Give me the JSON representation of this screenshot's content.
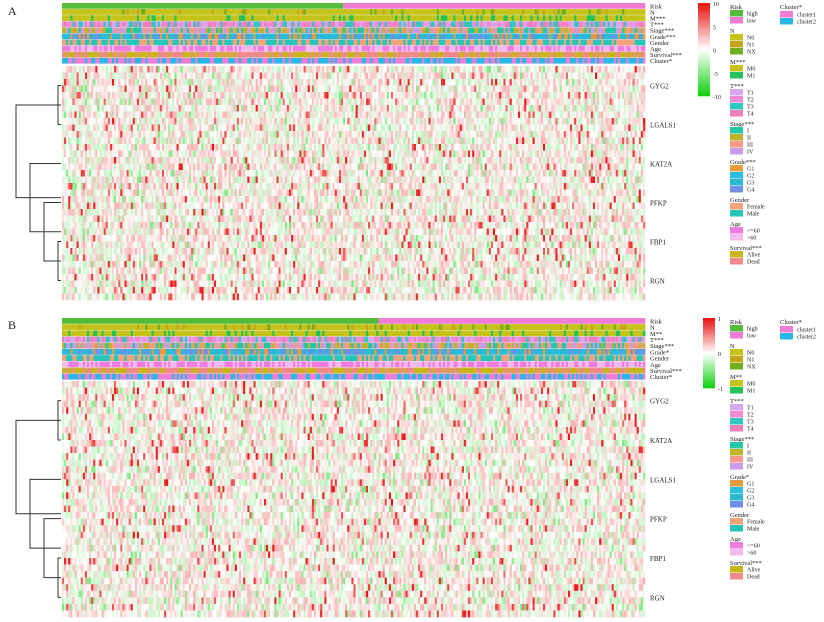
{
  "panels": [
    {
      "label": "A",
      "annotation_rows": [
        {
          "name": "Risk",
          "values": [
            "high",
            "low"
          ],
          "colors": [
            "#55bb3a",
            "#f07cd6"
          ]
        },
        {
          "name": "N",
          "values": [
            "N0",
            "N1",
            "NX"
          ],
          "colors": [
            "#c5c31a",
            "#c5a51a",
            "#6fae1f"
          ]
        },
        {
          "name": "M***",
          "values": [
            "M0",
            "M1"
          ],
          "colors": [
            "#c5c31a",
            "#23c25a"
          ]
        },
        {
          "name": "T***",
          "values": [
            "T1",
            "T2",
            "T3",
            "T4"
          ],
          "colors": [
            "#d9a6f0",
            "#f28ad6",
            "#2fc7c0",
            "#ef7fb8"
          ]
        },
        {
          "name": "Stage***",
          "values": [
            "I",
            "II",
            "III",
            "IV"
          ],
          "colors": [
            "#22c7a6",
            "#c0b22a",
            "#f49a88",
            "#c79aea"
          ]
        },
        {
          "name": "Grade***",
          "values": [
            "G1",
            "G2",
            "G3",
            "G4"
          ],
          "colors": [
            "#e69c3c",
            "#29bde0",
            "#2ab9cf",
            "#6f8fe8"
          ]
        },
        {
          "name": "Gender",
          "values": [
            "Female",
            "Male"
          ],
          "colors": [
            "#f3a27c",
            "#25c6b9"
          ]
        },
        {
          "name": "Age",
          "values": [
            "<=60",
            ">60"
          ],
          "colors": [
            "#f07ce0",
            "#f4b9ef"
          ]
        },
        {
          "name": "Survival***",
          "values": [
            "Alive",
            "Dead"
          ],
          "colors": [
            "#c8b51a",
            "#f08a8a"
          ]
        },
        {
          "name": "Cluster*",
          "values": [
            "cluster1",
            "cluster2"
          ],
          "colors": [
            "#f07cd6",
            "#29b8e6"
          ]
        }
      ],
      "genes": [
        "GYG2",
        "LGALS1",
        "KAT2A",
        "PFKP",
        "FBP1",
        "RGN"
      ],
      "risk_split": 0.48,
      "colorbar_ticks": [
        "10",
        "5",
        "0",
        "-5",
        "-10"
      ],
      "legend_groups": [
        {
          "title": "Risk",
          "items": [
            "high",
            "low"
          ]
        },
        {
          "title": "N",
          "items": [
            "N0",
            "N1",
            "NX"
          ]
        },
        {
          "title": "M***",
          "items": [
            "M0",
            "M1"
          ]
        },
        {
          "title": "T***",
          "items": [
            "T1",
            "T2",
            "T3",
            "T4"
          ]
        },
        {
          "title": "Stage***",
          "items": [
            "I",
            "II",
            "III",
            "IV"
          ]
        },
        {
          "title": "Grade***",
          "items": [
            "G1",
            "G2",
            "G3",
            "G4"
          ]
        },
        {
          "title": "Gender",
          "items": [
            "Female",
            "Male"
          ]
        },
        {
          "title": "Age",
          "items": [
            "<=60",
            ">60"
          ]
        },
        {
          "title": "Survival***",
          "items": [
            "Alive",
            "Dead"
          ]
        }
      ],
      "cluster_legend": {
        "title": "Cluster*",
        "items": [
          "cluster1",
          "cluster2"
        ]
      }
    },
    {
      "label": "B",
      "annotation_rows": [
        {
          "name": "Risk",
          "values": [
            "high",
            "low"
          ],
          "colors": [
            "#55bb3a",
            "#f07cd6"
          ]
        },
        {
          "name": "N",
          "values": [
            "N0",
            "N1",
            "NX"
          ],
          "colors": [
            "#c5c31a",
            "#c5a51a",
            "#6fae1f"
          ]
        },
        {
          "name": "M**",
          "values": [
            "M0",
            "M1"
          ],
          "colors": [
            "#c5c31a",
            "#23c25a"
          ]
        },
        {
          "name": "T***",
          "values": [
            "T1",
            "T2",
            "T3",
            "T4"
          ],
          "colors": [
            "#d9a6f0",
            "#f28ad6",
            "#2fc7c0",
            "#ef7fb8"
          ]
        },
        {
          "name": "Stage***",
          "values": [
            "I",
            "II",
            "III",
            "IV"
          ],
          "colors": [
            "#22c7a6",
            "#c0b22a",
            "#f49a88",
            "#c79aea"
          ]
        },
        {
          "name": "Grade*",
          "values": [
            "G1",
            "G2",
            "G3",
            "G4"
          ],
          "colors": [
            "#e69c3c",
            "#29bde0",
            "#2ab9cf",
            "#6f8fe8"
          ]
        },
        {
          "name": "Gender",
          "values": [
            "Female",
            "Male"
          ],
          "colors": [
            "#f3a27c",
            "#25c6b9"
          ]
        },
        {
          "name": "Age",
          "values": [
            "<=60",
            ">60"
          ],
          "colors": [
            "#f07ce0",
            "#f4b9ef"
          ]
        },
        {
          "name": "Survival***",
          "values": [
            "Alive",
            "Dead"
          ],
          "colors": [
            "#c8b51a",
            "#f08a8a"
          ]
        },
        {
          "name": "Cluster*",
          "values": [
            "cluster1",
            "cluster2"
          ],
          "colors": [
            "#f07cd6",
            "#29b8e6"
          ]
        }
      ],
      "genes": [
        "GYG2",
        "KAT2A",
        "LGALS1",
        "PFKP",
        "FBP1",
        "RGN"
      ],
      "risk_split": 0.54,
      "colorbar_ticks": [
        "1",
        "0",
        "-1"
      ],
      "legend_groups": [
        {
          "title": "Risk",
          "items": [
            "high",
            "low"
          ]
        },
        {
          "title": "N",
          "items": [
            "N0",
            "N1",
            "NX"
          ]
        },
        {
          "title": "M**",
          "items": [
            "M0",
            "M1"
          ]
        },
        {
          "title": "T***",
          "items": [
            "T1",
            "T2",
            "T3",
            "T4"
          ]
        },
        {
          "title": "Stage***",
          "items": [
            "I",
            "II",
            "III",
            "IV"
          ]
        },
        {
          "title": "Grade*",
          "items": [
            "G1",
            "G2",
            "G3",
            "G4"
          ]
        },
        {
          "title": "Gender",
          "items": [
            "Female",
            "Male"
          ]
        },
        {
          "title": "Age",
          "items": [
            "<=60",
            ">60"
          ]
        },
        {
          "title": "Survival***",
          "items": [
            "Alive",
            "Dead"
          ]
        }
      ],
      "cluster_legend": {
        "title": "Cluster*",
        "items": [
          "cluster1",
          "cluster2"
        ]
      }
    }
  ],
  "chart_data": [
    {
      "type": "heatmap",
      "title": "",
      "rows": [
        "GYG2",
        "LGALS1",
        "KAT2A",
        "PFKP",
        "FBP1",
        "RGN"
      ],
      "colorbar_ticks": [
        "10",
        "5",
        "0",
        "-5",
        "-10"
      ],
      "colorscale": [
        "#00cc00",
        "#ffffff",
        "#ee0000"
      ]
    },
    {
      "type": "heatmap",
      "title": "",
      "rows": [
        "GYG2",
        "KAT2A",
        "LGALS1",
        "PFKP",
        "FBP1",
        "RGN"
      ],
      "colorbar_ticks": [
        "1",
        "0",
        "-1"
      ],
      "colorscale": [
        "#00cc00",
        "#ffffff",
        "#ee0000"
      ]
    }
  ]
}
